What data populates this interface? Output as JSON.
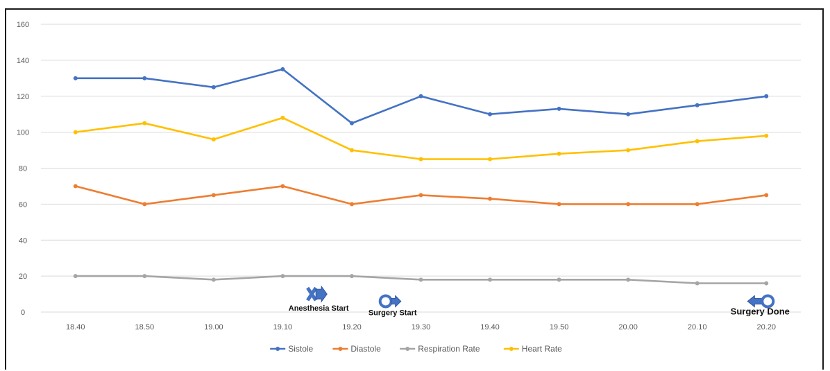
{
  "chart_data": {
    "type": "line",
    "x": [
      "18.40",
      "18.50",
      "19.00",
      "19.10",
      "19.20",
      "19.30",
      "19.40",
      "19.50",
      "20.00",
      "20.10",
      "20.20"
    ],
    "ylim": [
      0,
      160
    ],
    "yticks": [
      0,
      20,
      40,
      60,
      80,
      100,
      120,
      140,
      160
    ],
    "grid": true,
    "legend_position": "bottom",
    "series": [
      {
        "name": "Sistole",
        "color": "#4472C4",
        "values": [
          130,
          130,
          125,
          135,
          105,
          120,
          110,
          113,
          110,
          115,
          120
        ]
      },
      {
        "name": "Diastole",
        "color": "#ED7D31",
        "values": [
          70,
          60,
          65,
          70,
          60,
          65,
          63,
          60,
          60,
          60,
          65
        ]
      },
      {
        "name": "Respiration Rate",
        "color": "#A5A5A5",
        "values": [
          20,
          20,
          18,
          20,
          20,
          18,
          18,
          18,
          18,
          16,
          16
        ]
      },
      {
        "name": "Heart Rate",
        "color": "#FFC000",
        "values": [
          100,
          105,
          96,
          108,
          90,
          85,
          85,
          88,
          90,
          95,
          98
        ]
      }
    ],
    "annotations": [
      {
        "label": "Anesthesia Start",
        "symbol": "anesthesia-start-icon",
        "x_index": 3.5,
        "y": 10,
        "color": "#4472C4"
      },
      {
        "label": "Surgery Start",
        "symbol": "surgery-start-icon",
        "x_index": 4.55,
        "y": 6,
        "color": "#4472C4"
      },
      {
        "label": "Surgery Done",
        "symbol": "surgery-done-icon",
        "x_index": 9.85,
        "y": 6,
        "color": "#4472C4"
      }
    ]
  }
}
